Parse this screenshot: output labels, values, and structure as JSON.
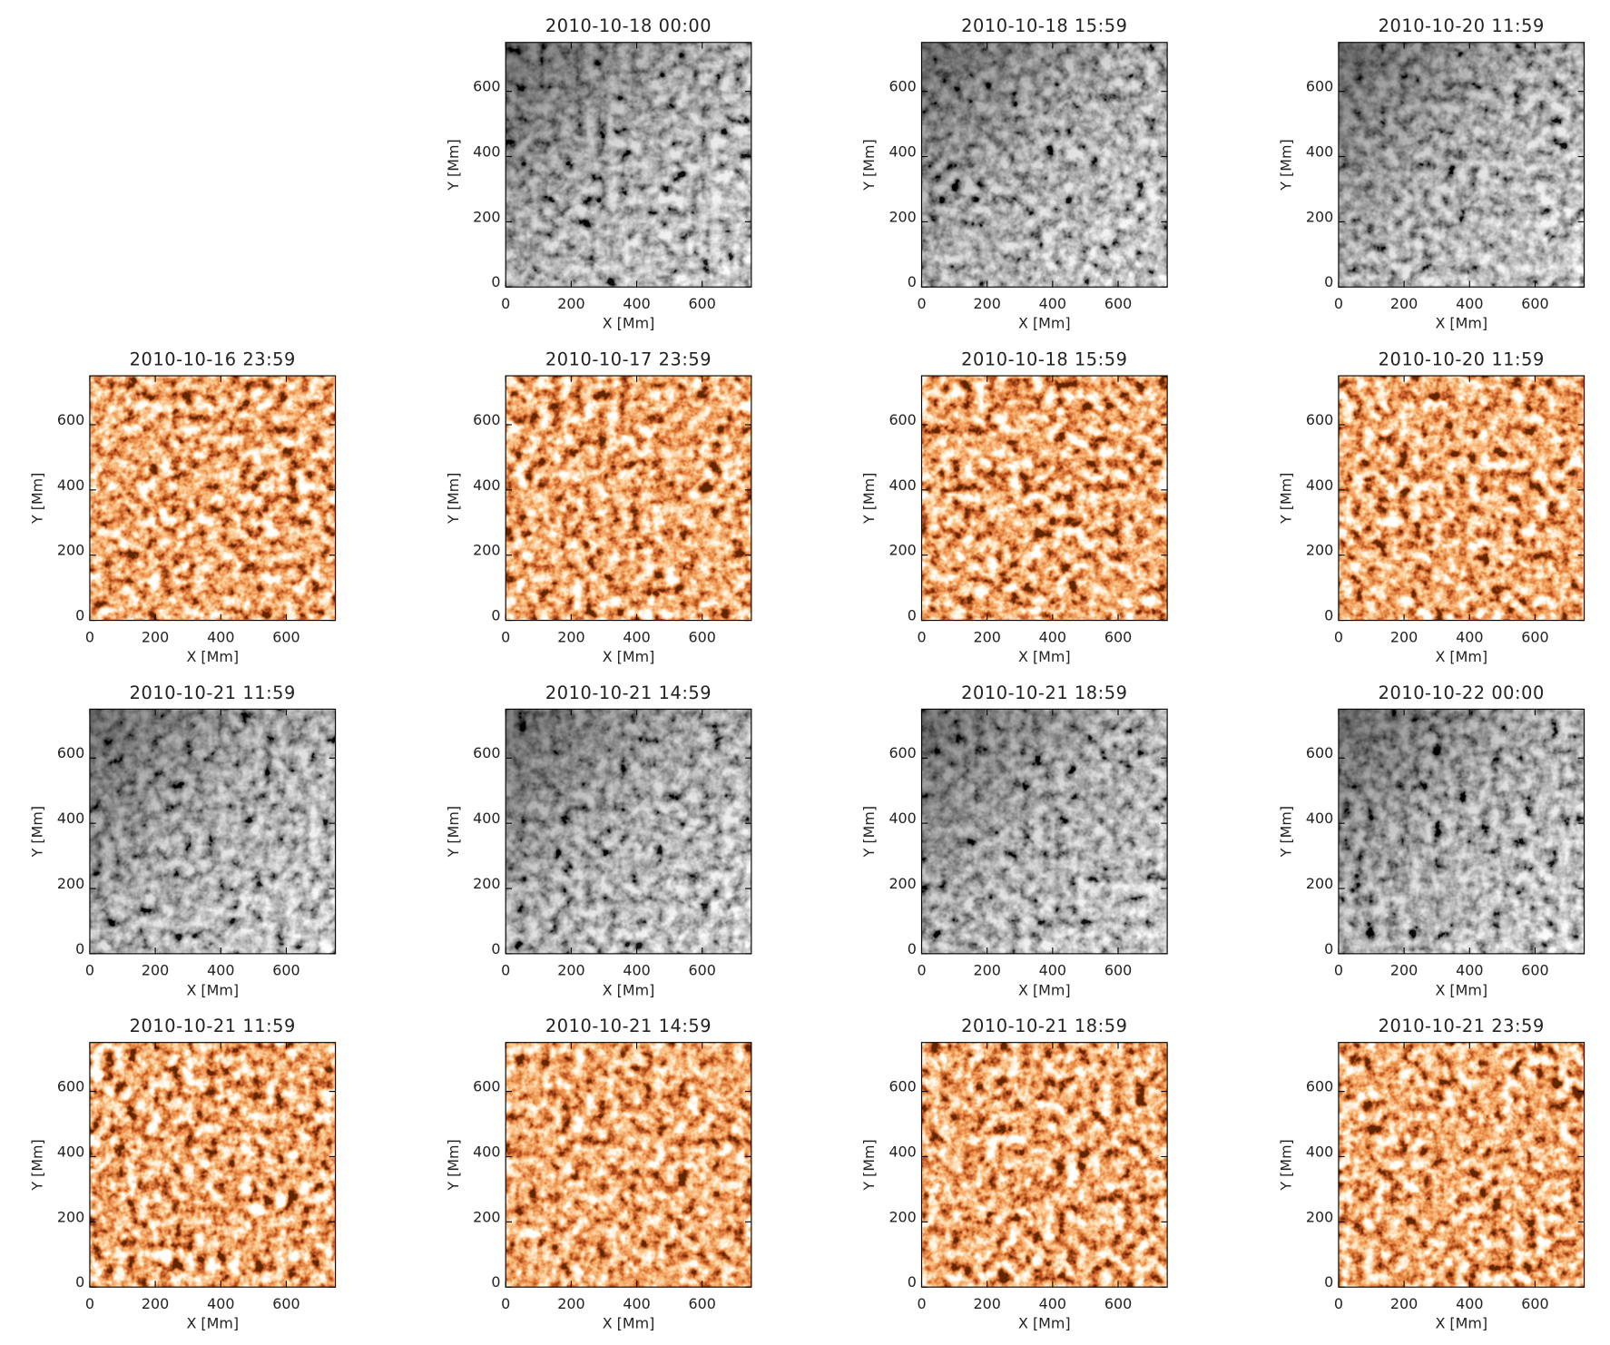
{
  "chart_data": [
    {
      "type": "image",
      "colormap": "gray",
      "title": "2010-10-18 00:00",
      "xlabel": "X [Mm]",
      "ylabel": "Y [Mm]",
      "xlim": [
        0,
        750
      ],
      "ylim": [
        0,
        750
      ],
      "xticks": [
        0,
        200,
        400,
        600
      ],
      "yticks": [
        0,
        200,
        400,
        600
      ]
    },
    {
      "type": "image",
      "colormap": "gray",
      "title": "2010-10-18 15:59",
      "xlabel": "X [Mm]",
      "ylabel": "Y [Mm]",
      "xlim": [
        0,
        750
      ],
      "ylim": [
        0,
        750
      ],
      "xticks": [
        0,
        200,
        400,
        600
      ],
      "yticks": [
        0,
        200,
        400,
        600
      ]
    },
    {
      "type": "image",
      "colormap": "gray",
      "title": "2010-10-20 11:59",
      "xlabel": "X [Mm]",
      "ylabel": "Y [Mm]",
      "xlim": [
        0,
        750
      ],
      "ylim": [
        0,
        750
      ],
      "xticks": [
        0,
        200,
        400,
        600
      ],
      "yticks": [
        0,
        200,
        400,
        600
      ]
    },
    {
      "type": "image",
      "colormap": "hot",
      "title": "2010-10-16 23:59",
      "xlabel": "X [Mm]",
      "ylabel": "Y [Mm]",
      "xlim": [
        0,
        750
      ],
      "ylim": [
        0,
        750
      ],
      "xticks": [
        0,
        200,
        400,
        600
      ],
      "yticks": [
        0,
        200,
        400,
        600
      ]
    },
    {
      "type": "image",
      "colormap": "hot",
      "title": "2010-10-17 23:59",
      "xlabel": "X [Mm]",
      "ylabel": "Y [Mm]",
      "xlim": [
        0,
        750
      ],
      "ylim": [
        0,
        750
      ],
      "xticks": [
        0,
        200,
        400,
        600
      ],
      "yticks": [
        0,
        200,
        400,
        600
      ]
    },
    {
      "type": "image",
      "colormap": "hot",
      "title": "2010-10-18 15:59",
      "xlabel": "X [Mm]",
      "ylabel": "Y [Mm]",
      "xlim": [
        0,
        750
      ],
      "ylim": [
        0,
        750
      ],
      "xticks": [
        0,
        200,
        400,
        600
      ],
      "yticks": [
        0,
        200,
        400,
        600
      ]
    },
    {
      "type": "image",
      "colormap": "hot",
      "title": "2010-10-20 11:59",
      "xlabel": "X [Mm]",
      "ylabel": "Y [Mm]",
      "xlim": [
        0,
        750
      ],
      "ylim": [
        0,
        750
      ],
      "xticks": [
        0,
        200,
        400,
        600
      ],
      "yticks": [
        0,
        200,
        400,
        600
      ]
    },
    {
      "type": "image",
      "colormap": "gray",
      "title": "2010-10-21 11:59",
      "xlabel": "X [Mm]",
      "ylabel": "Y [Mm]",
      "xlim": [
        0,
        750
      ],
      "ylim": [
        0,
        750
      ],
      "xticks": [
        0,
        200,
        400,
        600
      ],
      "yticks": [
        0,
        200,
        400,
        600
      ]
    },
    {
      "type": "image",
      "colormap": "gray",
      "title": "2010-10-21 14:59",
      "xlabel": "X [Mm]",
      "ylabel": "Y [Mm]",
      "xlim": [
        0,
        750
      ],
      "ylim": [
        0,
        750
      ],
      "xticks": [
        0,
        200,
        400,
        600
      ],
      "yticks": [
        0,
        200,
        400,
        600
      ]
    },
    {
      "type": "image",
      "colormap": "gray",
      "title": "2010-10-21 18:59",
      "xlabel": "X [Mm]",
      "ylabel": "Y [Mm]",
      "xlim": [
        0,
        750
      ],
      "ylim": [
        0,
        750
      ],
      "xticks": [
        0,
        200,
        400,
        600
      ],
      "yticks": [
        0,
        200,
        400,
        600
      ]
    },
    {
      "type": "image",
      "colormap": "gray",
      "title": "2010-10-22 00:00",
      "xlabel": "X [Mm]",
      "ylabel": "Y [Mm]",
      "xlim": [
        0,
        750
      ],
      "ylim": [
        0,
        750
      ],
      "xticks": [
        0,
        200,
        400,
        600
      ],
      "yticks": [
        0,
        200,
        400,
        600
      ]
    },
    {
      "type": "image",
      "colormap": "hot",
      "title": "2010-10-21 11:59",
      "xlabel": "X [Mm]",
      "ylabel": "Y [Mm]",
      "xlim": [
        0,
        750
      ],
      "ylim": [
        0,
        750
      ],
      "xticks": [
        0,
        200,
        400,
        600
      ],
      "yticks": [
        0,
        200,
        400,
        600
      ]
    },
    {
      "type": "image",
      "colormap": "hot",
      "title": "2010-10-21 14:59",
      "xlabel": "X [Mm]",
      "ylabel": "Y [Mm]",
      "xlim": [
        0,
        750
      ],
      "ylim": [
        0,
        750
      ],
      "xticks": [
        0,
        200,
        400,
        600
      ],
      "yticks": [
        0,
        200,
        400,
        600
      ]
    },
    {
      "type": "image",
      "colormap": "hot",
      "title": "2010-10-21 18:59",
      "xlabel": "X [Mm]",
      "ylabel": "Y [Mm]",
      "xlim": [
        0,
        750
      ],
      "ylim": [
        0,
        750
      ],
      "xticks": [
        0,
        200,
        400,
        600
      ],
      "yticks": [
        0,
        200,
        400,
        600
      ]
    },
    {
      "type": "image",
      "colormap": "hot",
      "title": "2010-10-21 23:59",
      "xlabel": "X [Mm]",
      "ylabel": "Y [Mm]",
      "xlim": [
        0,
        750
      ],
      "ylim": [
        0,
        750
      ],
      "xticks": [
        0,
        200,
        400,
        600
      ],
      "yticks": [
        0,
        200,
        400,
        600
      ]
    }
  ]
}
